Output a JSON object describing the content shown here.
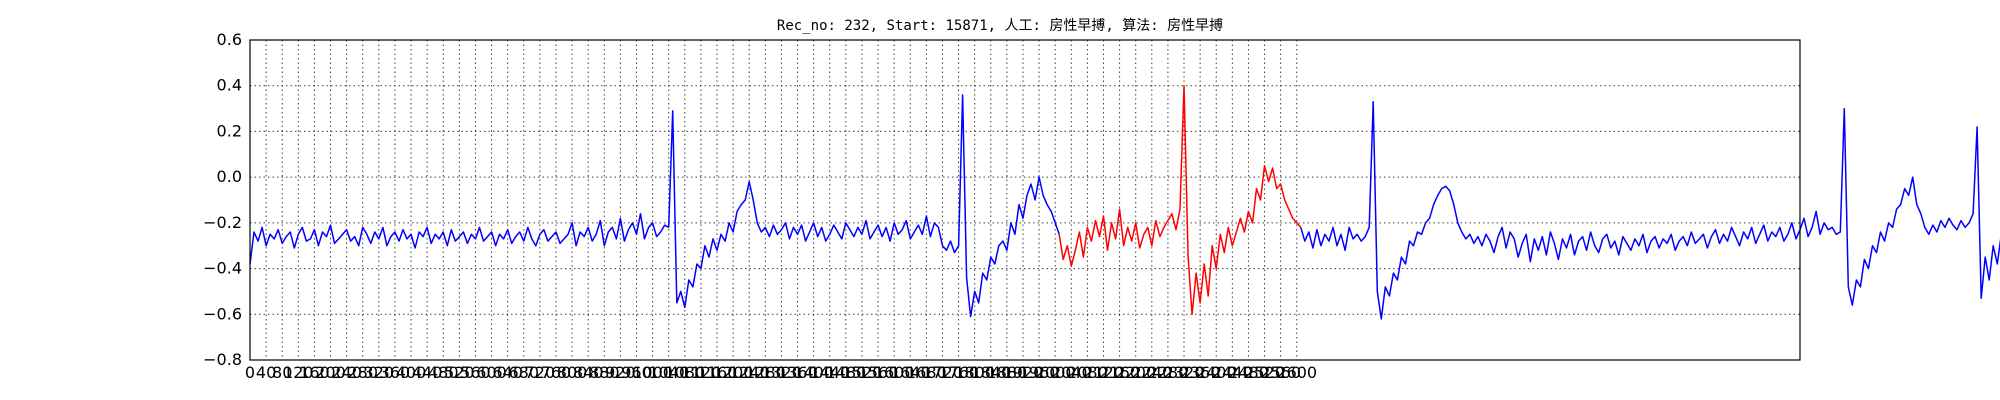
{
  "chart_data": {
    "type": "line",
    "title": "Rec_no: 232, Start: 15871, 人工: 房性早搏, 算法: 房性早搏",
    "xlabel": "",
    "ylabel": "",
    "xlim": [
      0,
      3850
    ],
    "ylim": [
      -0.8,
      0.6
    ],
    "grid": true,
    "x_step": 10,
    "y_ticks": [
      "0.6",
      "0.4",
      "0.2",
      "0.0",
      "−0.2",
      "−0.4",
      "−0.6",
      "−0.8"
    ],
    "y_tick_values": [
      0.6,
      0.4,
      0.2,
      0.0,
      -0.2,
      -0.4,
      -0.6,
      -0.8
    ],
    "x_ticks": [
      "0",
      "40",
      "80",
      "120",
      "160",
      "200",
      "240",
      "280",
      "320",
      "360",
      "400",
      "440",
      "480",
      "520",
      "560",
      "600",
      "640",
      "680",
      "720",
      "760",
      "800",
      "840",
      "880",
      "920",
      "960",
      "1000",
      "1040",
      "1080",
      "1120",
      "1160",
      "1200",
      "1240",
      "1280",
      "1320",
      "1360",
      "1400",
      "1440",
      "1480",
      "1520",
      "1560",
      "1600",
      "1640",
      "1680",
      "1720",
      "1760",
      "1800",
      "1840",
      "1880",
      "1920",
      "1960",
      "2000",
      "2040",
      "2080",
      "2120",
      "2160",
      "2200",
      "2240",
      "2280",
      "2320",
      "2360",
      "2400",
      "2440",
      "2480",
      "2520",
      "2560",
      "2600"
    ],
    "x_tick_values": [
      0,
      40,
      80,
      120,
      160,
      200,
      240,
      280,
      320,
      360,
      400,
      440,
      480,
      520,
      560,
      600,
      640,
      680,
      720,
      760,
      800,
      840,
      880,
      920,
      960,
      1000,
      1040,
      1080,
      1120,
      1160,
      1200,
      1240,
      1280,
      1320,
      1360,
      1400,
      1440,
      1480,
      1520,
      1560,
      1600,
      1640,
      1680,
      1720,
      1760,
      1800,
      1840,
      1880,
      1920,
      1960,
      2000,
      2040,
      2080,
      2120,
      2160,
      2200,
      2240,
      2280,
      2320,
      2360,
      2400,
      2440,
      2480,
      2520,
      2560,
      2600
    ],
    "series": [
      {
        "color": "#0000ff",
        "segments": [
          [
            -0.38,
            -0.24,
            -0.28,
            -0.22,
            -0.3,
            -0.25,
            -0.27,
            -0.23,
            -0.29,
            -0.26,
            -0.24,
            -0.31,
            -0.25,
            -0.22,
            -0.28,
            -0.27,
            -0.23,
            -0.3,
            -0.24,
            -0.26,
            -0.21,
            -0.29,
            -0.27,
            -0.25,
            -0.23,
            -0.28,
            -0.26,
            -0.3,
            -0.22,
            -0.25,
            -0.29,
            -0.24,
            -0.27,
            -0.22,
            -0.3,
            -0.26,
            -0.24,
            -0.28,
            -0.23,
            -0.27,
            -0.25,
            -0.31,
            -0.24,
            -0.26,
            -0.22,
            -0.29,
            -0.25,
            -0.27,
            -0.24,
            -0.3,
            -0.23,
            -0.28,
            -0.26,
            -0.24,
            -0.29,
            -0.25,
            -0.27,
            -0.22,
            -0.28,
            -0.26,
            -0.24,
            -0.3,
            -0.25,
            -0.27,
            -0.23,
            -0.29,
            -0.26,
            -0.24,
            -0.28,
            -0.22,
            -0.27,
            -0.3,
            -0.25,
            -0.23,
            -0.28,
            -0.26,
            -0.24,
            -0.29,
            -0.27,
            -0.25,
            -0.2,
            -0.3,
            -0.24,
            -0.26,
            -0.22,
            -0.28,
            -0.25,
            -0.19,
            -0.3,
            -0.24,
            -0.22,
            -0.27,
            -0.18,
            -0.28,
            -0.23,
            -0.2,
            -0.25,
            -0.16,
            -0.27,
            -0.22,
            -0.2,
            -0.26,
            -0.24,
            -0.21,
            -0.22,
            0.29,
            -0.55,
            -0.5,
            -0.57,
            -0.45,
            -0.48,
            -0.38,
            -0.4,
            -0.3,
            -0.35,
            -0.27,
            -0.32,
            -0.25,
            -0.28,
            -0.2,
            -0.24,
            -0.15,
            -0.12,
            -0.1,
            -0.02,
            -0.1,
            -0.2,
            -0.24,
            -0.22,
            -0.26,
            -0.21,
            -0.25,
            -0.23,
            -0.2,
            -0.27,
            -0.22,
            -0.25,
            -0.21,
            -0.28,
            -0.24,
            -0.2,
            -0.26,
            -0.22,
            -0.28,
            -0.25,
            -0.21,
            -0.24,
            -0.27,
            -0.2,
            -0.23,
            -0.26,
            -0.22,
            -0.25,
            -0.19,
            -0.27,
            -0.24,
            -0.21,
            -0.26,
            -0.22,
            -0.28,
            -0.2,
            -0.25,
            -0.23,
            -0.19,
            -0.27,
            -0.24,
            -0.21,
            -0.25,
            -0.17,
            -0.26,
            -0.2,
            -0.22,
            -0.3,
            -0.32,
            -0.28,
            -0.33,
            -0.3,
            0.36,
            -0.44,
            -0.61,
            -0.5,
            -0.55,
            -0.42,
            -0.45,
            -0.35,
            -0.38,
            -0.3,
            -0.28,
            -0.32,
            -0.2,
            -0.25,
            -0.12,
            -0.18,
            -0.08,
            -0.03,
            -0.1,
            0.0,
            -0.08,
            -0.12,
            -0.15,
            -0.2,
            -0.25
          ],
          [
            -0.36,
            -0.3,
            -0.39,
            -0.32,
            -0.24,
            -0.35,
            -0.22,
            -0.28,
            -0.19,
            -0.26,
            -0.17,
            -0.32,
            -0.2,
            -0.27,
            -0.14,
            -0.3,
            -0.22,
            -0.28,
            -0.2,
            -0.31,
            -0.25,
            -0.22,
            -0.3,
            -0.19,
            -0.26,
            -0.22,
            -0.19,
            -0.16,
            -0.23,
            -0.14,
            0.4,
            -0.35,
            -0.6,
            -0.42,
            -0.55,
            -0.38,
            -0.52,
            -0.3,
            -0.4,
            -0.25,
            -0.33,
            -0.22,
            -0.3,
            -0.24,
            -0.18,
            -0.24,
            -0.15,
            -0.2,
            -0.05,
            -0.1,
            0.05,
            -0.02,
            0.04,
            -0.05,
            -0.03,
            -0.1,
            -0.14,
            -0.18,
            -0.2
          ],
          [
            -0.22,
            -0.28,
            -0.24,
            -0.31,
            -0.23,
            -0.3,
            -0.25,
            -0.28,
            -0.22,
            -0.3,
            -0.25,
            -0.32,
            -0.22,
            -0.27,
            -0.25,
            -0.28,
            -0.26,
            -0.22,
            0.33,
            -0.5,
            -0.62,
            -0.48,
            -0.52,
            -0.42,
            -0.45,
            -0.35,
            -0.38,
            -0.28,
            -0.3,
            -0.24,
            -0.25,
            -0.2,
            -0.18,
            -0.12,
            -0.08,
            -0.05,
            -0.04,
            -0.06,
            -0.12,
            -0.2,
            -0.24,
            -0.27,
            -0.25,
            -0.29,
            -0.26,
            -0.3,
            -0.25,
            -0.28,
            -0.33,
            -0.26,
            -0.22,
            -0.31,
            -0.24,
            -0.27,
            -0.35,
            -0.29,
            -0.25,
            -0.37,
            -0.27,
            -0.32,
            -0.26,
            -0.34,
            -0.24,
            -0.29,
            -0.36,
            -0.27,
            -0.31,
            -0.25,
            -0.34,
            -0.28,
            -0.26,
            -0.32,
            -0.24,
            -0.3,
            -0.33,
            -0.27,
            -0.25,
            -0.31,
            -0.28,
            -0.34,
            -0.26,
            -0.29,
            -0.32,
            -0.27,
            -0.3,
            -0.25,
            -0.33,
            -0.28,
            -0.26,
            -0.31,
            -0.27,
            -0.29,
            -0.25,
            -0.32,
            -0.28,
            -0.26,
            -0.3,
            -0.24,
            -0.29,
            -0.27,
            -0.25,
            -0.31,
            -0.26,
            -0.23,
            -0.29,
            -0.25,
            -0.28,
            -0.22,
            -0.26,
            -0.3,
            -0.24,
            -0.27,
            -0.22,
            -0.29,
            -0.25,
            -0.21,
            -0.28,
            -0.24,
            -0.26,
            -0.22,
            -0.28,
            -0.25,
            -0.2,
            -0.27,
            -0.23,
            -0.18,
            -0.26,
            -0.22,
            -0.15,
            -0.25,
            -0.2,
            -0.23,
            -0.22,
            -0.25,
            -0.24,
            0.3,
            -0.48,
            -0.56,
            -0.45,
            -0.48,
            -0.36,
            -0.4,
            -0.3,
            -0.33,
            -0.24,
            -0.28,
            -0.2,
            -0.22,
            -0.14,
            -0.12,
            -0.05,
            -0.08,
            0.0,
            -0.12,
            -0.16,
            -0.22,
            -0.25,
            -0.21,
            -0.24,
            -0.19,
            -0.22,
            -0.18,
            -0.21,
            -0.23,
            -0.19,
            -0.22,
            -0.2,
            -0.16,
            0.22,
            -0.53,
            -0.35,
            -0.45,
            -0.3,
            -0.38,
            -0.25,
            -0.28,
            -0.2,
            -0.22,
            -0.16,
            -0.19,
            -0.1,
            -0.05,
            -0.06,
            -0.03,
            -0.08,
            -0.18,
            -0.22,
            -0.16,
            -0.27,
            -0.25
          ]
        ]
      },
      {
        "color": "#ff0000",
        "segments": [
          [
            -0.25,
            -0.36,
            -0.3,
            -0.39,
            -0.32,
            -0.24,
            -0.35,
            -0.22,
            -0.28,
            -0.19,
            -0.26,
            -0.17,
            -0.32,
            -0.2,
            -0.27,
            -0.14,
            -0.3,
            -0.22,
            -0.28,
            -0.2,
            -0.31,
            -0.25,
            -0.22,
            -0.3,
            -0.19,
            -0.26,
            -0.22,
            -0.19,
            -0.16,
            -0.23,
            -0.14,
            0.4,
            -0.35,
            -0.6,
            -0.42,
            -0.55,
            -0.38,
            -0.52,
            -0.3,
            -0.4,
            -0.25,
            -0.33,
            -0.22,
            -0.3,
            -0.24,
            -0.18,
            -0.24,
            -0.15,
            -0.2,
            -0.05,
            -0.1,
            0.05,
            -0.02,
            0.04,
            -0.05,
            -0.03,
            -0.1,
            -0.14,
            -0.18,
            -0.2,
            -0.22
          ]
        ]
      }
    ]
  }
}
